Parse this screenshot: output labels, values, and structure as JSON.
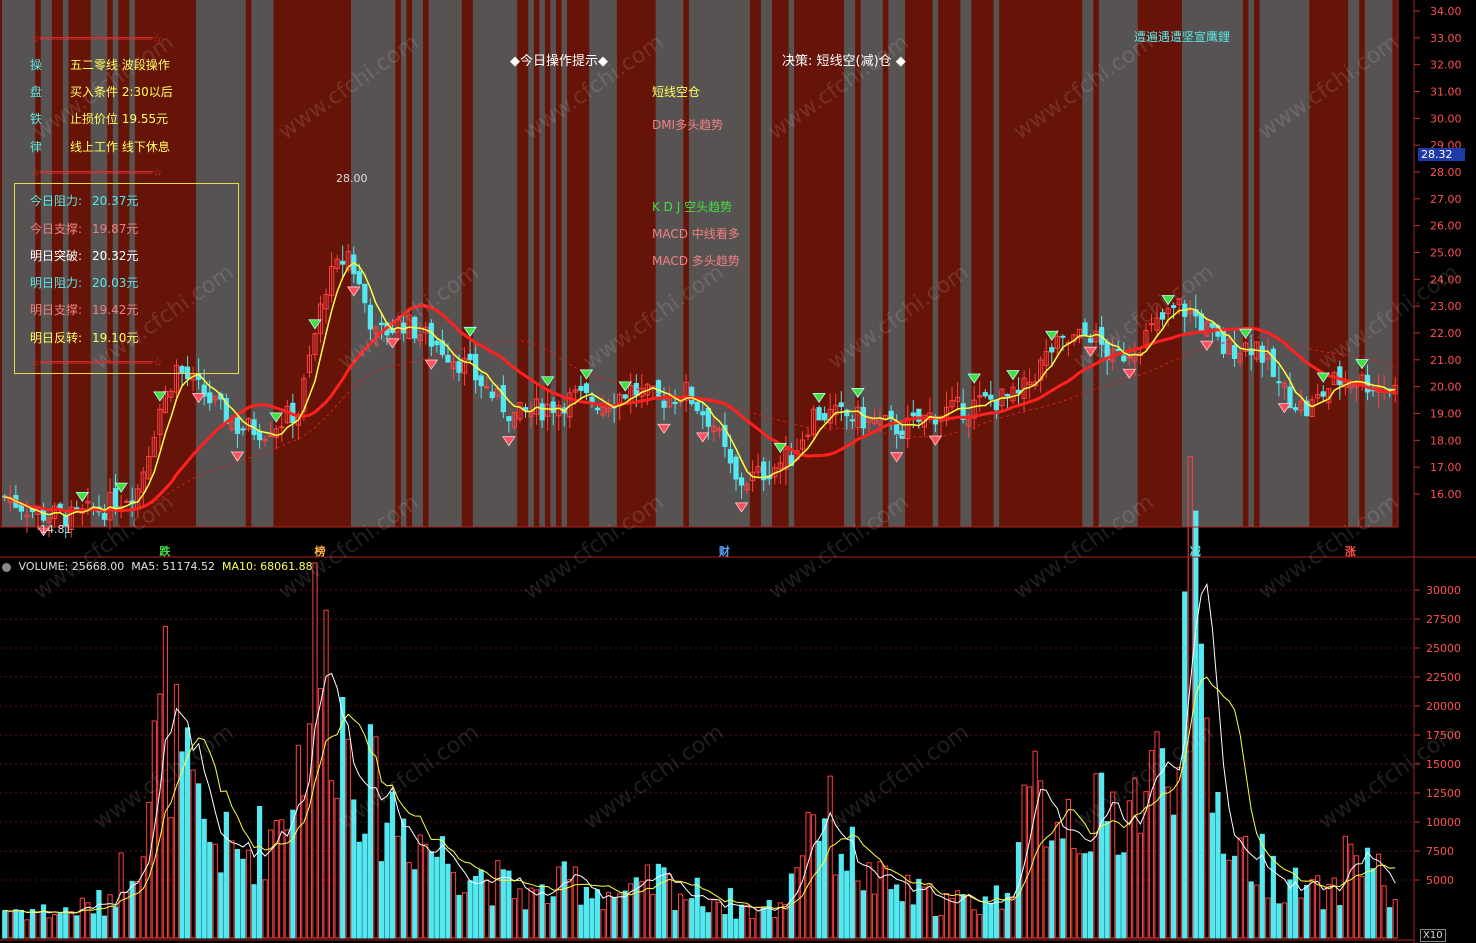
{
  "window": {
    "type": "stock-chart-terminal"
  },
  "rules_panel": {
    "divider": "☆═════════════════☆",
    "rows": [
      {
        "key": "操",
        "value": "五二零线 波段操作"
      },
      {
        "key": "盘",
        "value": "买入条件 2:30以后"
      },
      {
        "key": "铁",
        "value": "止损价位 19.55元"
      },
      {
        "key": "律",
        "value": "线上工作 线下休息"
      }
    ]
  },
  "levels_panel": {
    "items": [
      {
        "label": "今日阻力:",
        "value": "20.37元",
        "color": "#58e8e8"
      },
      {
        "label": "今日支撑:",
        "value": "19.87元",
        "color": "#f08080"
      },
      {
        "label": "明日突破:",
        "value": "20.32元",
        "color": "#ffffff"
      },
      {
        "label": "明日阻力:",
        "value": "20.03元",
        "color": "#58e8e8"
      },
      {
        "label": "明日支撑:",
        "value": "19.42元",
        "color": "#f08080"
      },
      {
        "label": "明日反转:",
        "value": "19.10元",
        "color": "#ffff60"
      }
    ]
  },
  "header_tip": "◆今日操作提示◆",
  "decision": "决策: 短线空(减)仓 ◆",
  "watermark_top": "遭遍遇遭坚宣鹰鋰",
  "signals": [
    {
      "text": "短线空仓",
      "color": "#ffff60"
    },
    {
      "text": "DMI多头趋势",
      "color": "#f08080"
    },
    {
      "text": "K D J 空头趋势",
      "color": "#40e040"
    },
    {
      "text": "MACD 中线看多",
      "color": "#f08080"
    },
    {
      "text": "MACD 多头趋势",
      "color": "#f08080"
    }
  ],
  "price_tag": "28.32",
  "peak_label": "28.00",
  "low_label": "14.81",
  "event_markers": [
    {
      "text": "跌",
      "color": "#40e040",
      "bar": 29
    },
    {
      "text": "榜",
      "color": "#ffb040",
      "bar": 57
    },
    {
      "text": "财",
      "color": "#58a8ff",
      "bar": 130
    },
    {
      "text": "减",
      "color": "#58e8e8",
      "bar": 215
    },
    {
      "text": "涨",
      "color": "#ff5050",
      "bar": 243
    }
  ],
  "volume_header": {
    "volume": "VOLUME: 25668.00",
    "ma5": "MA5: 51174.52",
    "ma10": "MA10: 68061.88"
  },
  "volume_unit": "X10",
  "watermark": "www.cfchi.com",
  "chart_data": {
    "type": "candlestick",
    "price_axis": {
      "ticks": [
        "34.00",
        "33.00",
        "32.00",
        "31.00",
        "30.00",
        "29.00",
        "28.00",
        "27.00",
        "26.00",
        "25.00",
        "24.00",
        "23.00",
        "22.00",
        "21.00",
        "20.00",
        "19.00",
        "18.00",
        "17.00",
        "16.00"
      ],
      "range": [
        15.0,
        34.4
      ]
    },
    "volume_axis": {
      "ticks": [
        "30000",
        "27500",
        "25000",
        "22500",
        "20000",
        "17500",
        "15000",
        "12500",
        "10000",
        "7500",
        "5000"
      ],
      "range": [
        0,
        32000
      ]
    },
    "bar_count": 252,
    "anchors_close": [
      [
        0,
        15.9
      ],
      [
        6,
        15.3
      ],
      [
        12,
        15.1
      ],
      [
        18,
        15.5
      ],
      [
        24,
        16.2
      ],
      [
        28,
        19.2
      ],
      [
        31,
        20.7
      ],
      [
        36,
        19.7
      ],
      [
        42,
        18.5
      ],
      [
        47,
        18.4
      ],
      [
        53,
        19.1
      ],
      [
        58,
        23.8
      ],
      [
        62,
        25.0
      ],
      [
        67,
        21.9
      ],
      [
        72,
        22.4
      ],
      [
        78,
        21.6
      ],
      [
        83,
        20.8
      ],
      [
        88,
        19.7
      ],
      [
        92,
        18.9
      ],
      [
        97,
        19.2
      ],
      [
        103,
        19.6
      ],
      [
        108,
        19.4
      ],
      [
        113,
        19.9
      ],
      [
        118,
        19.5
      ],
      [
        123,
        19.8
      ],
      [
        128,
        18.6
      ],
      [
        132,
        16.4
      ],
      [
        136,
        16.7
      ],
      [
        142,
        17.4
      ],
      [
        146,
        19.0
      ],
      [
        152,
        18.9
      ],
      [
        157,
        18.7
      ],
      [
        162,
        18.4
      ],
      [
        168,
        19.0
      ],
      [
        173,
        19.2
      ],
      [
        178,
        19.5
      ],
      [
        183,
        19.6
      ],
      [
        189,
        21.4
      ],
      [
        196,
        22.0
      ],
      [
        200,
        21.0
      ],
      [
        204,
        21.5
      ],
      [
        208,
        22.3
      ],
      [
        212,
        23.0
      ],
      [
        215,
        22.6
      ],
      [
        220,
        21.4
      ],
      [
        226,
        21.6
      ],
      [
        230,
        20.0
      ],
      [
        235,
        19.1
      ],
      [
        240,
        20.2
      ],
      [
        244,
        20.3
      ],
      [
        248,
        20.0
      ],
      [
        251,
        19.9
      ]
    ],
    "anchors_volume": [
      [
        0,
        2500
      ],
      [
        10,
        2200
      ],
      [
        18,
        3000
      ],
      [
        24,
        8000
      ],
      [
        29,
        20000
      ],
      [
        32,
        14000
      ],
      [
        36,
        9000
      ],
      [
        42,
        7000
      ],
      [
        48,
        9000
      ],
      [
        53,
        15000
      ],
      [
        56,
        25000
      ],
      [
        58,
        23000
      ],
      [
        63,
        16000
      ],
      [
        67,
        12000
      ],
      [
        72,
        10000
      ],
      [
        78,
        7500
      ],
      [
        84,
        6000
      ],
      [
        90,
        4500
      ],
      [
        96,
        3500
      ],
      [
        103,
        5000
      ],
      [
        108,
        4000
      ],
      [
        113,
        3500
      ],
      [
        118,
        5000
      ],
      [
        123,
        3800
      ],
      [
        128,
        3500
      ],
      [
        134,
        2500
      ],
      [
        140,
        2500
      ],
      [
        146,
        12000
      ],
      [
        150,
        9000
      ],
      [
        156,
        5000
      ],
      [
        162,
        4000
      ],
      [
        168,
        3300
      ],
      [
        174,
        3000
      ],
      [
        180,
        3600
      ],
      [
        186,
        12000
      ],
      [
        192,
        11000
      ],
      [
        198,
        10000
      ],
      [
        204,
        12000
      ],
      [
        210,
        15000
      ],
      [
        214,
        30000
      ],
      [
        218,
        13000
      ],
      [
        222,
        8000
      ],
      [
        228,
        6000
      ],
      [
        234,
        4000
      ],
      [
        240,
        3600
      ],
      [
        243,
        8000
      ],
      [
        246,
        7000
      ],
      [
        249,
        5000
      ],
      [
        251,
        2600
      ]
    ],
    "ma5_color": "#ffff40",
    "ma20_color": "#ff2020",
    "up_color": "#ff4040",
    "down_color": "#54e8f0"
  }
}
